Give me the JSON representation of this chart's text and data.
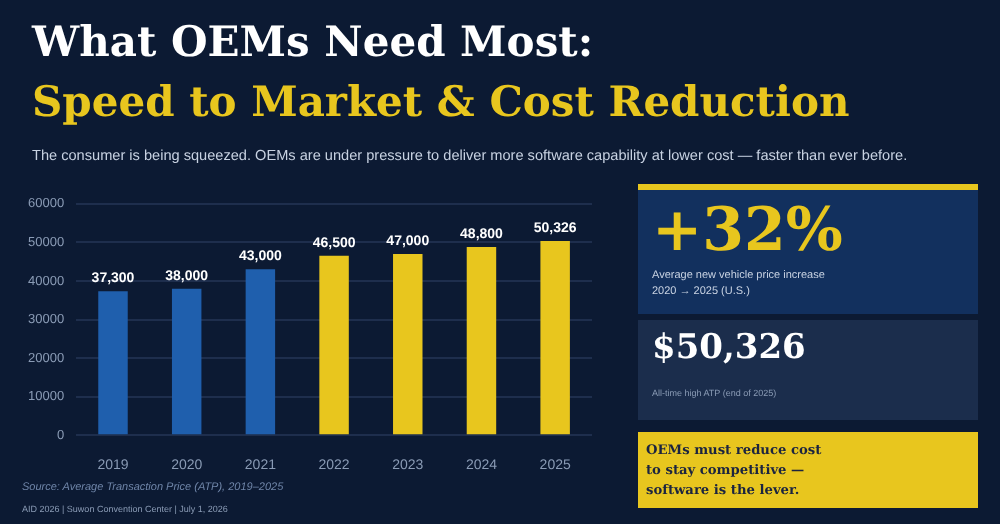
{
  "chart_data": [
    {
      "type": "bar",
      "title": "What OEMs Need Most:",
      "subtitle": "Speed to Market & Cost Reduction",
      "annotations": [
        "The consumer is being squeezed. OEMs are under pressure to deliver more software capability at lower cost — faster than ever before.",
        "Source: Average Transaction Price (ATP), 2019–2025",
        "AID 2026  |  Suwon Convention Center  |  July 1, 2026"
      ],
      "categories": [
        "2019",
        "2020",
        "2021",
        "2022",
        "2023",
        "2024",
        "2025"
      ],
      "values": [
        37300,
        38000,
        43000,
        46500,
        47000,
        48800,
        50326
      ],
      "colors": [
        "#1f5fad",
        "#1f5fad",
        "#1f5fad",
        "#e8c61e",
        "#e8c61e",
        "#e8c61e",
        "#e8c61e"
      ],
      "value_labels": [
        "37,300",
        "38,000",
        "43,000",
        "46,500",
        "47,000",
        "48,800",
        "50,326"
      ],
      "ylim": [
        0,
        60000
      ],
      "yticks": [
        0,
        10000,
        20000,
        30000,
        40000,
        50000,
        60000
      ],
      "grid": "y",
      "legend": false
    },
    {
      "type": "other",
      "annotations": [
        "+32%",
        "Average new vehicle price increase",
        "2020 → 2025 (U.S.)",
        "$50,326",
        "All-time high ATP (end of 2025)",
        "OEMs must reduce cost",
        "to stay competitive —",
        "software is the lever."
      ]
    }
  ]
}
